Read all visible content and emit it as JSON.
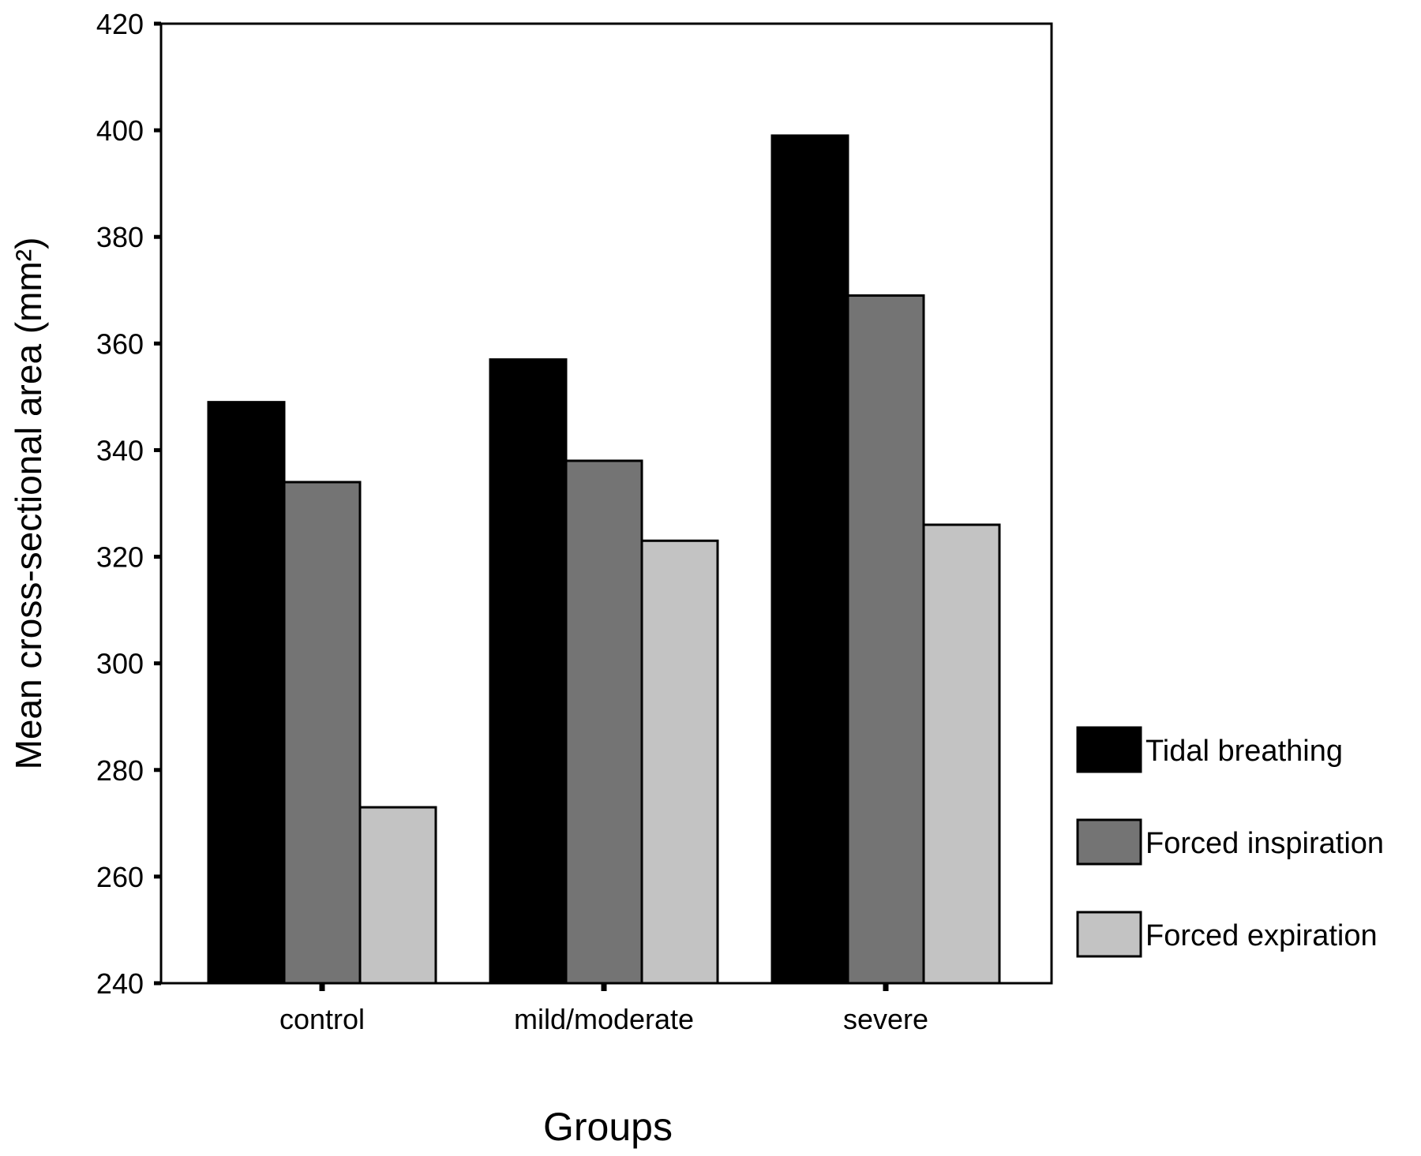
{
  "chart_data": {
    "type": "bar",
    "title": "",
    "xlabel": "Groups",
    "ylabel": "Mean cross-sectional area (mm²)",
    "categories": [
      "control",
      "mild/moderate",
      "severe"
    ],
    "series": [
      {
        "name": "Tidal breathing",
        "values": [
          349,
          357,
          399
        ]
      },
      {
        "name": "Forced inspiration",
        "values": [
          334,
          338,
          369
        ]
      },
      {
        "name": "Forced expiration",
        "values": [
          273,
          323,
          326
        ]
      }
    ],
    "ylim": [
      240,
      420
    ],
    "yticks": [
      "240",
      "260",
      "280",
      "300",
      "320",
      "340",
      "360",
      "380",
      "400",
      "420"
    ],
    "grid": false,
    "legend_position": "right"
  },
  "colors": {
    "series": [
      "#000000",
      "#747474",
      "#c3c3c3"
    ],
    "axis": "#000000"
  }
}
